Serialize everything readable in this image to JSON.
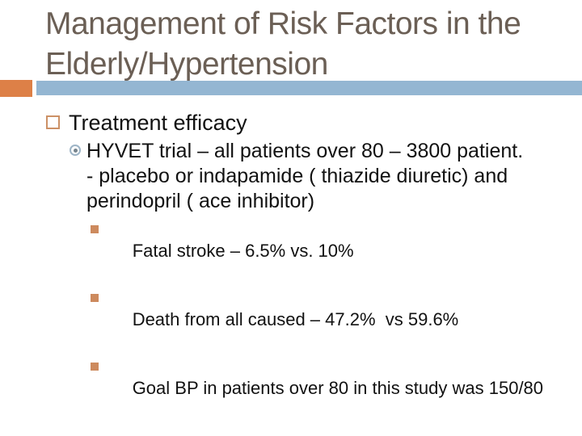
{
  "slide": {
    "title_lines": [
      "Management of Risk Factors in the",
      "Elderly/Hypertension"
    ],
    "level1_bullet": "Treatment efficacy",
    "hyvet": {
      "lines": [
        "HYVET trial – all patients over 80 – 3800 patient.",
        "- placebo or indapamide ( thiazide diuretic) and",
        "perindopril ( ace inhibitor)"
      ]
    },
    "stats": [
      "Fatal stroke – 6.5% vs. 10%",
      "Death from all caused – 47.2%  vs 59.6%",
      "Goal BP in patients over 80 in this study was 150/80"
    ],
    "colors": {
      "accent_orange": "#dd8047",
      "accent_blue": "#94b6d2",
      "title_text": "#6b5f55",
      "body_text": "#111111",
      "l1_bullet_border": "#cc9166",
      "l2_bullet_ring": "#9db4c6",
      "l3_bullet_fill": "#cd8a5e"
    },
    "icons": {
      "level1": "square-outline-bullet",
      "level2": "circle-dot-bullet",
      "level3": "square-bullet"
    }
  }
}
